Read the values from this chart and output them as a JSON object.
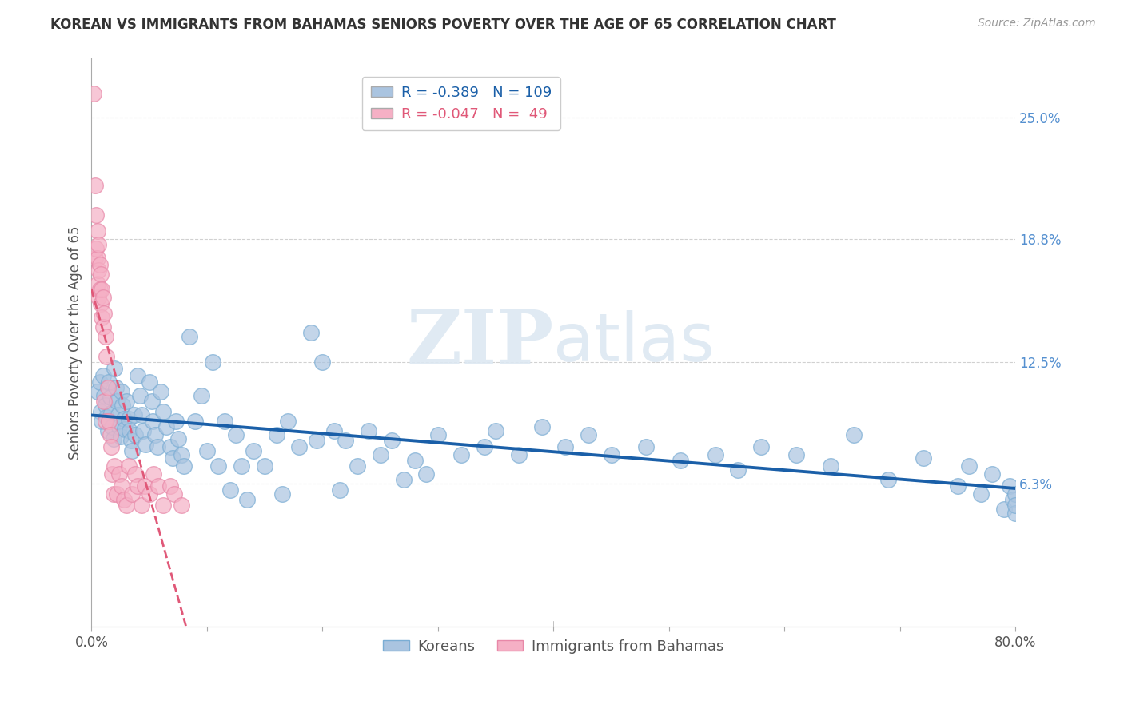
{
  "title": "KOREAN VS IMMIGRANTS FROM BAHAMAS SENIORS POVERTY OVER THE AGE OF 65 CORRELATION CHART",
  "source": "Source: ZipAtlas.com",
  "ylabel": "Seniors Poverty Over the Age of 65",
  "xlim": [
    0,
    0.8
  ],
  "ylim": [
    -0.01,
    0.28
  ],
  "yticks": [
    0.063,
    0.125,
    0.188,
    0.25
  ],
  "ytick_labels": [
    "6.3%",
    "12.5%",
    "18.8%",
    "25.0%"
  ],
  "xticks": [
    0.0,
    0.1,
    0.2,
    0.3,
    0.4,
    0.5,
    0.6,
    0.7,
    0.8
  ],
  "xtick_labels": [
    "0.0%",
    "",
    "",
    "",
    "",
    "",
    "",
    "",
    "80.0%"
  ],
  "koreans_R": -0.389,
  "koreans_N": 109,
  "bahamas_R": -0.047,
  "bahamas_N": 49,
  "blue_color": "#aac4e0",
  "blue_edge_color": "#7aadd4",
  "blue_line_color": "#1a5fa8",
  "pink_color": "#f5b0c5",
  "pink_edge_color": "#e888a8",
  "pink_line_color": "#e05878",
  "background_color": "#ffffff",
  "koreans_x": [
    0.005,
    0.007,
    0.008,
    0.009,
    0.01,
    0.011,
    0.012,
    0.013,
    0.014,
    0.015,
    0.016,
    0.017,
    0.018,
    0.019,
    0.02,
    0.021,
    0.022,
    0.023,
    0.024,
    0.025,
    0.026,
    0.027,
    0.028,
    0.029,
    0.03,
    0.032,
    0.033,
    0.034,
    0.035,
    0.037,
    0.038,
    0.04,
    0.042,
    0.043,
    0.045,
    0.047,
    0.05,
    0.052,
    0.053,
    0.055,
    0.057,
    0.06,
    0.062,
    0.065,
    0.068,
    0.07,
    0.073,
    0.075,
    0.078,
    0.08,
    0.085,
    0.09,
    0.095,
    0.1,
    0.105,
    0.11,
    0.115,
    0.12,
    0.125,
    0.13,
    0.135,
    0.14,
    0.15,
    0.16,
    0.165,
    0.17,
    0.18,
    0.19,
    0.195,
    0.2,
    0.21,
    0.215,
    0.22,
    0.23,
    0.24,
    0.25,
    0.26,
    0.27,
    0.28,
    0.29,
    0.3,
    0.32,
    0.34,
    0.35,
    0.37,
    0.39,
    0.41,
    0.43,
    0.45,
    0.48,
    0.51,
    0.54,
    0.56,
    0.58,
    0.61,
    0.64,
    0.66,
    0.69,
    0.72,
    0.75,
    0.76,
    0.77,
    0.78,
    0.79,
    0.795,
    0.798,
    0.8,
    0.8,
    0.8
  ],
  "koreans_y": [
    0.11,
    0.115,
    0.1,
    0.095,
    0.118,
    0.108,
    0.103,
    0.097,
    0.09,
    0.115,
    0.107,
    0.099,
    0.092,
    0.086,
    0.122,
    0.112,
    0.105,
    0.098,
    0.092,
    0.087,
    0.11,
    0.103,
    0.096,
    0.091,
    0.105,
    0.096,
    0.09,
    0.085,
    0.08,
    0.098,
    0.088,
    0.118,
    0.108,
    0.098,
    0.09,
    0.083,
    0.115,
    0.105,
    0.095,
    0.088,
    0.082,
    0.11,
    0.1,
    0.092,
    0.082,
    0.076,
    0.095,
    0.086,
    0.078,
    0.072,
    0.138,
    0.095,
    0.108,
    0.08,
    0.125,
    0.072,
    0.095,
    0.06,
    0.088,
    0.072,
    0.055,
    0.08,
    0.072,
    0.088,
    0.058,
    0.095,
    0.082,
    0.14,
    0.085,
    0.125,
    0.09,
    0.06,
    0.085,
    0.072,
    0.09,
    0.078,
    0.085,
    0.065,
    0.075,
    0.068,
    0.088,
    0.078,
    0.082,
    0.09,
    0.078,
    0.092,
    0.082,
    0.088,
    0.078,
    0.082,
    0.075,
    0.078,
    0.07,
    0.082,
    0.078,
    0.072,
    0.088,
    0.065,
    0.076,
    0.062,
    0.072,
    0.058,
    0.068,
    0.05,
    0.062,
    0.055,
    0.048,
    0.058,
    0.052
  ],
  "bahamas_x": [
    0.002,
    0.003,
    0.003,
    0.004,
    0.004,
    0.005,
    0.005,
    0.005,
    0.006,
    0.006,
    0.006,
    0.007,
    0.007,
    0.008,
    0.008,
    0.009,
    0.009,
    0.01,
    0.01,
    0.011,
    0.011,
    0.012,
    0.012,
    0.013,
    0.014,
    0.015,
    0.016,
    0.017,
    0.018,
    0.019,
    0.02,
    0.022,
    0.024,
    0.026,
    0.028,
    0.03,
    0.032,
    0.035,
    0.038,
    0.04,
    0.043,
    0.046,
    0.05,
    0.054,
    0.058,
    0.062,
    0.068,
    0.072,
    0.078
  ],
  "bahamas_y": [
    0.262,
    0.215,
    0.178,
    0.2,
    0.183,
    0.192,
    0.178,
    0.165,
    0.185,
    0.172,
    0.158,
    0.175,
    0.162,
    0.17,
    0.155,
    0.162,
    0.148,
    0.158,
    0.143,
    0.15,
    0.105,
    0.138,
    0.095,
    0.128,
    0.112,
    0.095,
    0.088,
    0.082,
    0.068,
    0.058,
    0.072,
    0.058,
    0.068,
    0.062,
    0.055,
    0.052,
    0.072,
    0.058,
    0.068,
    0.062,
    0.052,
    0.062,
    0.058,
    0.068,
    0.062,
    0.052,
    0.062,
    0.058,
    0.052
  ],
  "title_fontsize": 12,
  "source_fontsize": 10,
  "tick_fontsize": 12,
  "ylabel_fontsize": 12
}
